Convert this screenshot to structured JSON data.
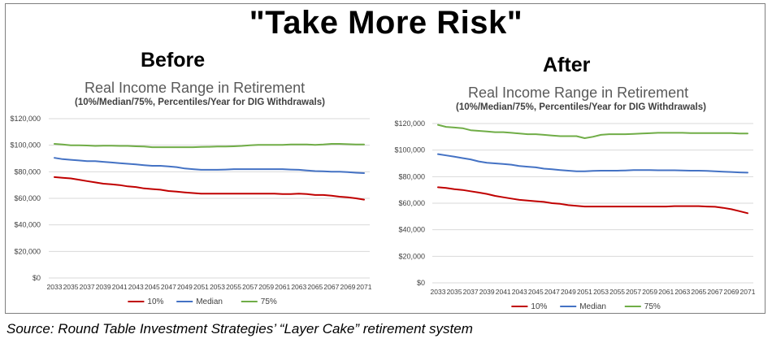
{
  "title": "\"Take More Risk\"",
  "source": "Source: Round Table Investment Strategies’ “Layer Cake” retirement system",
  "chart_data": [
    {
      "panel_label": "Before",
      "type": "line",
      "title": "Real Income Range in Retirement",
      "subtitle": "(10%/Median/75%, Percentiles/Year for DIG Withdrawals)",
      "xlabel": "",
      "ylabel": "",
      "ylim": [
        0,
        120000
      ],
      "yticks": [
        0,
        20000,
        40000,
        60000,
        80000,
        100000,
        120000
      ],
      "ytick_labels": [
        "$0",
        "$20,000",
        "$40,000",
        "$60,000",
        "$80,000",
        "$100,000",
        "$120,000"
      ],
      "x_tick_labels": [
        "2033",
        "2035",
        "2037",
        "2039",
        "2041",
        "2043",
        "2045",
        "2047",
        "2049",
        "2051",
        "2053",
        "2055",
        "2057",
        "2059",
        "2061",
        "2063",
        "2065",
        "2067",
        "2069",
        "2071"
      ],
      "x": [
        2033,
        2034,
        2035,
        2036,
        2037,
        2038,
        2039,
        2040,
        2041,
        2042,
        2043,
        2044,
        2045,
        2046,
        2047,
        2048,
        2049,
        2050,
        2051,
        2052,
        2053,
        2054,
        2055,
        2056,
        2057,
        2058,
        2059,
        2060,
        2061,
        2062,
        2063,
        2064,
        2065,
        2066,
        2067,
        2068,
        2069,
        2070,
        2071
      ],
      "grid": "horizontal",
      "legend": "bottom",
      "series": [
        {
          "name": "10%",
          "color": "#c00000",
          "values": [
            76000,
            75500,
            75000,
            74000,
            73000,
            72000,
            71000,
            70500,
            70000,
            69000,
            68500,
            67500,
            67000,
            66500,
            65500,
            65000,
            64500,
            64000,
            63500,
            63500,
            63500,
            63500,
            63500,
            63500,
            63500,
            63500,
            63500,
            63500,
            63200,
            63200,
            63500,
            63200,
            62500,
            62500,
            62000,
            61200,
            60800,
            60000,
            59000
          ]
        },
        {
          "name": "Median",
          "color": "#4472c4",
          "values": [
            90500,
            89500,
            89000,
            88500,
            88000,
            88000,
            87500,
            87000,
            86500,
            86000,
            85500,
            85000,
            84500,
            84500,
            84000,
            83500,
            82500,
            82000,
            81500,
            81500,
            81500,
            81700,
            82000,
            82000,
            82000,
            82000,
            82000,
            82000,
            82000,
            81700,
            81500,
            81000,
            80500,
            80300,
            80000,
            80000,
            79700,
            79300,
            79000
          ]
        },
        {
          "name": "75%",
          "color": "#70ad47",
          "values": [
            101000,
            100500,
            100000,
            100000,
            99800,
            99500,
            99700,
            99700,
            99500,
            99500,
            99200,
            99000,
            98500,
            98500,
            98500,
            98500,
            98500,
            98500,
            98700,
            98800,
            99000,
            99000,
            99200,
            99500,
            100000,
            100300,
            100300,
            100300,
            100200,
            100500,
            100500,
            100500,
            100300,
            100500,
            101000,
            101000,
            100800,
            100500,
            100500
          ]
        }
      ]
    },
    {
      "panel_label": "After",
      "type": "line",
      "title": "Real Income Range in Retirement",
      "subtitle": "(10%/Median/75%, Percentiles/Year for DIG Withdrawals)",
      "xlabel": "",
      "ylabel": "",
      "ylim": [
        0,
        120000
      ],
      "yticks": [
        0,
        20000,
        40000,
        60000,
        80000,
        100000,
        120000
      ],
      "ytick_labels": [
        "$0",
        "$20,000",
        "$40,000",
        "$60,000",
        "$80,000",
        "$100,000",
        "$120,000"
      ],
      "x_tick_labels": [
        "2033",
        "2035",
        "2037",
        "2039",
        "2041",
        "2043",
        "2045",
        "2047",
        "2049",
        "2051",
        "2053",
        "2055",
        "2057",
        "2059",
        "2061",
        "2063",
        "2065",
        "2067",
        "2069",
        "2071"
      ],
      "x": [
        2033,
        2034,
        2035,
        2036,
        2037,
        2038,
        2039,
        2040,
        2041,
        2042,
        2043,
        2044,
        2045,
        2046,
        2047,
        2048,
        2049,
        2050,
        2051,
        2052,
        2053,
        2054,
        2055,
        2056,
        2057,
        2058,
        2059,
        2060,
        2061,
        2062,
        2063,
        2064,
        2065,
        2066,
        2067,
        2068,
        2069,
        2070,
        2071
      ],
      "grid": "horizontal",
      "legend": "bottom",
      "series": [
        {
          "name": "10%",
          "color": "#c00000",
          "values": [
            72000,
            71500,
            70500,
            70000,
            69000,
            68000,
            67000,
            65500,
            64500,
            63500,
            62500,
            62000,
            61500,
            61000,
            60000,
            59500,
            58500,
            58000,
            57500,
            57500,
            57500,
            57500,
            57500,
            57500,
            57500,
            57500,
            57500,
            57500,
            57500,
            57800,
            57800,
            57800,
            57800,
            57500,
            57300,
            56500,
            55500,
            54000,
            52500
          ]
        },
        {
          "name": "Median",
          "color": "#4472c4",
          "values": [
            97000,
            96000,
            95000,
            94000,
            93000,
            91500,
            90500,
            90000,
            89500,
            89000,
            88000,
            87500,
            87000,
            86000,
            85500,
            85000,
            84500,
            84000,
            84000,
            84300,
            84500,
            84500,
            84500,
            84700,
            85000,
            85000,
            85000,
            84800,
            84800,
            84800,
            84700,
            84500,
            84500,
            84300,
            84000,
            83700,
            83500,
            83200,
            83000
          ]
        },
        {
          "name": "75%",
          "color": "#70ad47",
          "values": [
            119000,
            117500,
            117000,
            116500,
            115000,
            114500,
            114000,
            113500,
            113500,
            113000,
            112500,
            112000,
            112000,
            111500,
            111000,
            110500,
            110500,
            110500,
            109000,
            110000,
            111500,
            112000,
            112000,
            112000,
            112200,
            112500,
            112700,
            113000,
            113000,
            113000,
            113000,
            112800,
            112800,
            112800,
            112800,
            112800,
            112800,
            112500,
            112500
          ]
        }
      ]
    }
  ]
}
